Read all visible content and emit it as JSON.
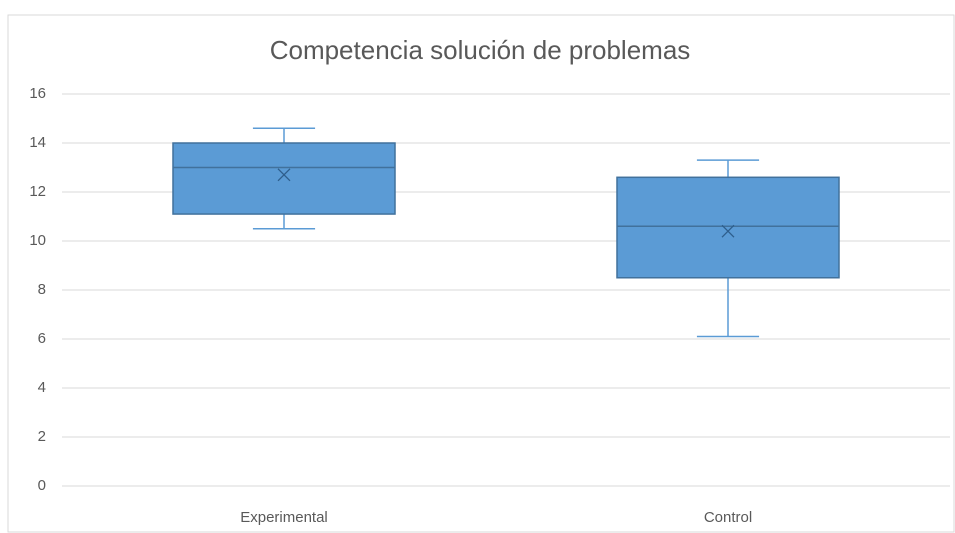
{
  "chart_data": {
    "type": "box",
    "title": "Competencia solución de problemas",
    "categories": [
      "Experimental",
      "Control"
    ],
    "boxes": [
      {
        "min": 10.5,
        "q1": 11.1,
        "median": 13,
        "q3": 14,
        "max": 14.6,
        "mean": 12.7
      },
      {
        "min": 6.1,
        "q1": 8.5,
        "median": 10.6,
        "q3": 12.6,
        "max": 13.3,
        "mean": 10.4
      }
    ],
    "color": "#5b9bd5",
    "ylim": [
      0,
      16
    ],
    "yticks": [
      0,
      2,
      4,
      6,
      8,
      10,
      12,
      14,
      16
    ],
    "grid": true
  }
}
